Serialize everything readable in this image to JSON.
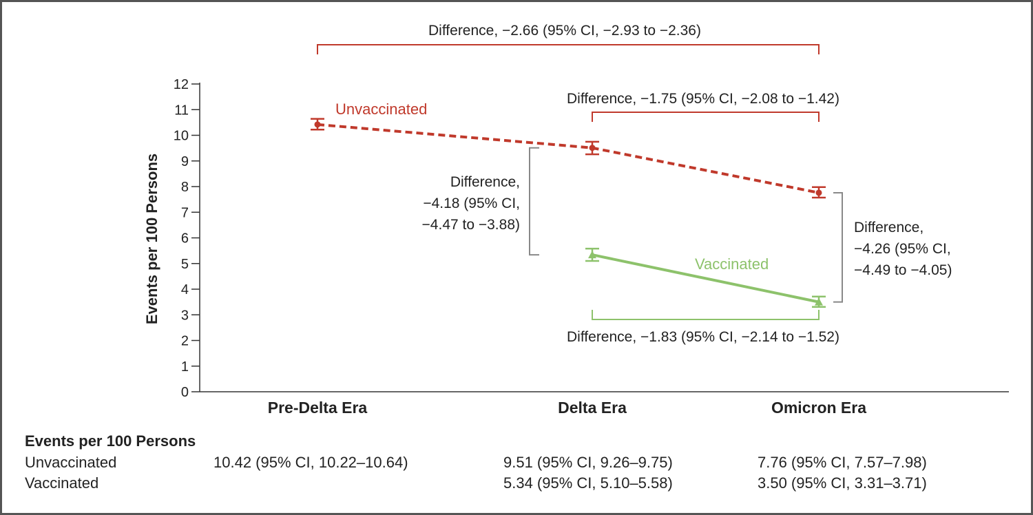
{
  "chart_data": {
    "type": "line",
    "ylabel": "Events per 100 Persons",
    "xlabel": "",
    "ylim": [
      0,
      12
    ],
    "yticks": [
      0,
      1,
      2,
      3,
      4,
      5,
      6,
      7,
      8,
      9,
      10,
      11,
      12
    ],
    "categories": [
      "Pre-Delta Era",
      "Delta Era",
      "Omicron Era"
    ],
    "grid": false,
    "series": [
      {
        "name": "Unvaccinated",
        "color": "#c0392b",
        "line_style": "dashed",
        "marker": "circle",
        "values": [
          10.42,
          9.51,
          7.76
        ],
        "ci_low": [
          10.22,
          9.26,
          7.57
        ],
        "ci_high": [
          10.64,
          9.75,
          7.98
        ]
      },
      {
        "name": "Vaccinated",
        "color": "#8dc26b",
        "line_style": "solid",
        "marker": "triangle",
        "values": [
          null,
          5.34,
          3.5
        ],
        "ci_low": [
          null,
          5.1,
          3.31
        ],
        "ci_high": [
          null,
          5.58,
          3.71
        ]
      }
    ],
    "annotations": [
      {
        "text": "Difference, −2.66 (95% CI, −2.93 to −2.36)",
        "color": "#c0392b"
      },
      {
        "text": "Difference, −1.75 (95% CI, −2.08 to −1.42)",
        "color": "#c0392b"
      },
      {
        "text": "Difference,\n−4.18 (95% CI,\n−4.47 to −3.88)",
        "color": "#888888"
      },
      {
        "text": "Difference,\n−4.26 (95% CI,\n−4.49 to −4.05)",
        "color": "#888888"
      },
      {
        "text": "Difference, −1.83 (95% CI, −2.14 to −1.52)",
        "color": "#8dc26b"
      }
    ]
  },
  "table": {
    "title": "Events per 100 Persons",
    "rows": [
      {
        "name": "Unvaccinated",
        "cells": [
          "10.42 (95% CI, 10.22–10.64)",
          "9.51 (95% CI, 9.26–9.75)",
          "7.76 (95% CI, 7.57–7.98)"
        ]
      },
      {
        "name": "Vaccinated",
        "cells": [
          "",
          "5.34 (95% CI, 5.10–5.58)",
          "3.50 (95% CI, 3.31–3.71)"
        ]
      }
    ]
  }
}
